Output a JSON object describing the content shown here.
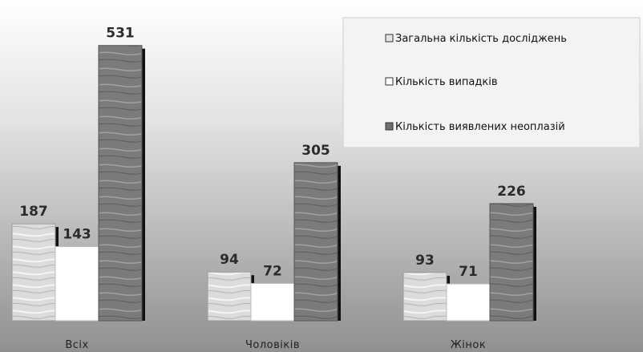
{
  "chart_data": {
    "type": "bar",
    "categories": [
      "Всіх",
      "Чоловіків",
      "Жінок"
    ],
    "series": [
      {
        "name": "Загальна кількість досліджень",
        "values": [
          187,
          94,
          93
        ]
      },
      {
        "name": "Кількість випадків",
        "values": [
          143,
          72,
          71
        ]
      },
      {
        "name": "Кількість виявлених неоплазій",
        "values": [
          531,
          305,
          226
        ]
      }
    ],
    "ylim": [
      0,
      600
    ],
    "grid": false,
    "legend_position": "top-right",
    "colors": {
      "series_1": "#d9d9d9",
      "series_2": "#ffffff",
      "series_3": "#7a7a7a",
      "bar_shadow": "#111111",
      "background_light": "#ffffff",
      "background_dark": "#8f8f8f"
    }
  }
}
